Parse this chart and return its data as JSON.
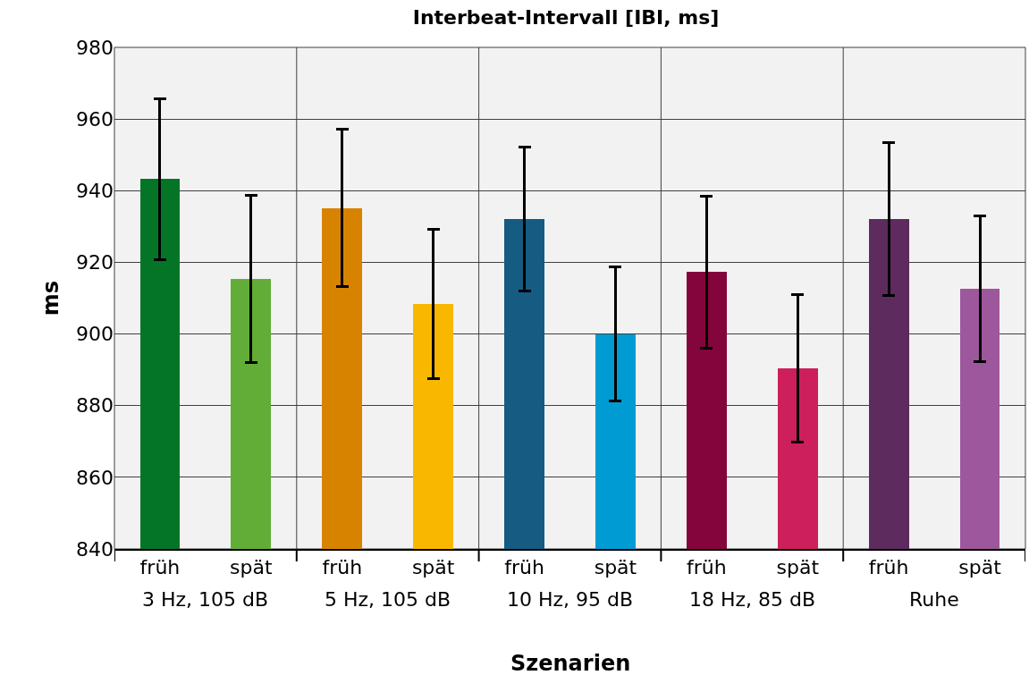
{
  "chart_data": {
    "type": "bar",
    "title": "Interbeat-Intervall [IBI, ms]",
    "xlabel": "Szenarien",
    "ylabel": "ms",
    "categories": [
      "früh",
      "spät",
      "früh",
      "spät",
      "früh",
      "spät",
      "früh",
      "spät",
      "früh",
      "spät"
    ],
    "values": [
      943.2,
      915.3,
      935.2,
      908.4,
      932.0,
      900.0,
      917.3,
      890.4,
      932.0,
      912.6
    ],
    "errors": [
      22.4,
      23.3,
      21.9,
      20.9,
      20.1,
      18.8,
      21.2,
      20.5,
      21.3,
      20.3
    ],
    "colors": [
      "#047527",
      "#62ad37",
      "#d88300",
      "#fab700",
      "#155b82",
      "#009bd3",
      "#83053b",
      "#cc1f5b",
      "#5e2b5e",
      "#9d579c"
    ],
    "annotations": [
      "3 Hz, 105 dB",
      "5 Hz, 105 dB",
      "10 Hz, 95 dB",
      "18 Hz, 85 dB",
      "Ruhe"
    ],
    "ylim": [
      840,
      980
    ],
    "yticks": [
      840,
      860,
      880,
      900,
      920,
      940,
      960,
      980
    ],
    "grid": "y",
    "legend": false
  }
}
